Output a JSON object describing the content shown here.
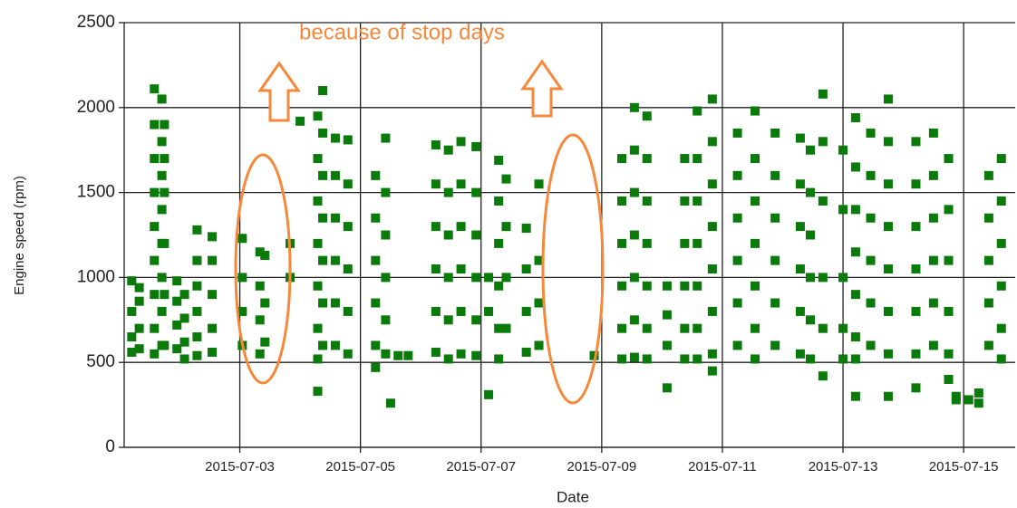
{
  "chart_data": {
    "type": "scatter",
    "x_label": "Date",
    "y_label": "Engine speed (rpm)",
    "annotation": "because of stop days",
    "color": "#0a7a0a",
    "grid": true,
    "annotation_color": "#f5883a",
    "xlim": [
      "2015-07-01T02:00",
      "2015-07-15T20:30"
    ],
    "xticks": [
      "2015-07-03",
      "2015-07-05",
      "2015-07-07",
      "2015-07-09",
      "2015-07-11",
      "2015-07-13",
      "2015-07-15"
    ],
    "ylim": [
      0,
      2500
    ],
    "yticks": [
      0,
      500,
      1000,
      1500,
      2000,
      2500
    ],
    "x": [
      "2015-07-01T05:00",
      "2015-07-01T05:00",
      "2015-07-01T05:00",
      "2015-07-01T05:00",
      "2015-07-01T08:00",
      "2015-07-01T08:00",
      "2015-07-01T08:00",
      "2015-07-01T08:00",
      "2015-07-01T14:00",
      "2015-07-01T14:00",
      "2015-07-01T14:00",
      "2015-07-01T14:00",
      "2015-07-01T14:00",
      "2015-07-01T14:00",
      "2015-07-01T14:00",
      "2015-07-01T14:00",
      "2015-07-01T14:00",
      "2015-07-01T17:00",
      "2015-07-01T17:00",
      "2015-07-01T17:00",
      "2015-07-01T17:00",
      "2015-07-01T17:00",
      "2015-07-01T17:00",
      "2015-07-01T17:00",
      "2015-07-01T17:00",
      "2015-07-01T18:00",
      "2015-07-01T18:00",
      "2015-07-01T18:00",
      "2015-07-01T18:00",
      "2015-07-01T18:00",
      "2015-07-01T18:00",
      "2015-07-01T23:00",
      "2015-07-01T23:00",
      "2015-07-01T23:00",
      "2015-07-01T23:00",
      "2015-07-02T02:00",
      "2015-07-02T02:00",
      "2015-07-02T02:00",
      "2015-07-02T02:00",
      "2015-07-02T07:00",
      "2015-07-02T07:00",
      "2015-07-02T07:00",
      "2015-07-02T07:00",
      "2015-07-02T07:00",
      "2015-07-02T07:00",
      "2015-07-02T13:00",
      "2015-07-02T13:00",
      "2015-07-02T13:00",
      "2015-07-02T13:00",
      "2015-07-02T13:00",
      "2015-07-03T01:00",
      "2015-07-03T01:00",
      "2015-07-03T01:00",
      "2015-07-03T01:00",
      "2015-07-03T08:00",
      "2015-07-03T08:00",
      "2015-07-03T08:00",
      "2015-07-03T08:00",
      "2015-07-03T10:00",
      "2015-07-03T10:00",
      "2015-07-03T10:00",
      "2015-07-03T20:00",
      "2015-07-03T20:00",
      "2015-07-04T00:00",
      "2015-07-04T07:00",
      "2015-07-04T07:00",
      "2015-07-04T07:00",
      "2015-07-04T07:00",
      "2015-07-04T07:00",
      "2015-07-04T07:00",
      "2015-07-04T07:00",
      "2015-07-04T07:00",
      "2015-07-04T09:00",
      "2015-07-04T09:00",
      "2015-07-04T09:00",
      "2015-07-04T09:00",
      "2015-07-04T09:00",
      "2015-07-04T09:00",
      "2015-07-04T09:00",
      "2015-07-04T14:00",
      "2015-07-04T14:00",
      "2015-07-04T14:00",
      "2015-07-04T14:00",
      "2015-07-04T14:00",
      "2015-07-04T14:00",
      "2015-07-04T19:00",
      "2015-07-04T19:00",
      "2015-07-04T19:00",
      "2015-07-04T19:00",
      "2015-07-04T19:00",
      "2015-07-04T19:00",
      "2015-07-05T06:00",
      "2015-07-05T06:00",
      "2015-07-05T06:00",
      "2015-07-05T06:00",
      "2015-07-05T06:00",
      "2015-07-05T06:00",
      "2015-07-05T10:00",
      "2015-07-05T10:00",
      "2015-07-05T10:00",
      "2015-07-05T10:00",
      "2015-07-05T10:00",
      "2015-07-05T10:00",
      "2015-07-05T12:00",
      "2015-07-05T15:00",
      "2015-07-05T19:00",
      "2015-07-06T06:00",
      "2015-07-06T06:00",
      "2015-07-06T06:00",
      "2015-07-06T06:00",
      "2015-07-06T06:00",
      "2015-07-06T06:00",
      "2015-07-06T11:00",
      "2015-07-06T11:00",
      "2015-07-06T11:00",
      "2015-07-06T11:00",
      "2015-07-06T11:00",
      "2015-07-06T11:00",
      "2015-07-06T16:00",
      "2015-07-06T16:00",
      "2015-07-06T16:00",
      "2015-07-06T16:00",
      "2015-07-06T16:00",
      "2015-07-06T16:00",
      "2015-07-06T22:00",
      "2015-07-06T22:00",
      "2015-07-06T22:00",
      "2015-07-06T22:00",
      "2015-07-06T22:00",
      "2015-07-06T22:00",
      "2015-07-07T03:00",
      "2015-07-07T03:00",
      "2015-07-07T03:00",
      "2015-07-07T07:00",
      "2015-07-07T07:00",
      "2015-07-07T07:00",
      "2015-07-07T07:00",
      "2015-07-07T07:00",
      "2015-07-07T07:00",
      "2015-07-07T10:00",
      "2015-07-07T10:00",
      "2015-07-07T10:00",
      "2015-07-07T10:00",
      "2015-07-07T18:00",
      "2015-07-07T18:00",
      "2015-07-07T18:00",
      "2015-07-07T18:00",
      "2015-07-07T23:00",
      "2015-07-07T23:00",
      "2015-07-07T23:00",
      "2015-07-07T23:00",
      "2015-07-08T21:00",
      "2015-07-09T08:00",
      "2015-07-09T08:00",
      "2015-07-09T08:00",
      "2015-07-09T08:00",
      "2015-07-09T08:00",
      "2015-07-09T08:00",
      "2015-07-09T13:00",
      "2015-07-09T13:00",
      "2015-07-09T13:00",
      "2015-07-09T13:00",
      "2015-07-09T13:00",
      "2015-07-09T13:00",
      "2015-07-09T13:00",
      "2015-07-09T18:00",
      "2015-07-09T18:00",
      "2015-07-09T18:00",
      "2015-07-09T18:00",
      "2015-07-09T18:00",
      "2015-07-09T18:00",
      "2015-07-09T18:00",
      "2015-07-10T02:00",
      "2015-07-10T02:00",
      "2015-07-10T02:00",
      "2015-07-10T02:00",
      "2015-07-10T09:00",
      "2015-07-10T09:00",
      "2015-07-10T09:00",
      "2015-07-10T09:00",
      "2015-07-10T09:00",
      "2015-07-10T09:00",
      "2015-07-10T14:00",
      "2015-07-10T14:00",
      "2015-07-10T14:00",
      "2015-07-10T14:00",
      "2015-07-10T14:00",
      "2015-07-10T14:00",
      "2015-07-10T14:00",
      "2015-07-10T20:00",
      "2015-07-10T20:00",
      "2015-07-10T20:00",
      "2015-07-10T20:00",
      "2015-07-10T20:00",
      "2015-07-10T20:00",
      "2015-07-10T20:00",
      "2015-07-10T20:00",
      "2015-07-11T06:00",
      "2015-07-11T06:00",
      "2015-07-11T06:00",
      "2015-07-11T06:00",
      "2015-07-11T06:00",
      "2015-07-11T06:00",
      "2015-07-11T13:00",
      "2015-07-11T13:00",
      "2015-07-11T13:00",
      "2015-07-11T13:00",
      "2015-07-11T13:00",
      "2015-07-11T13:00",
      "2015-07-11T13:00",
      "2015-07-11T21:00",
      "2015-07-11T21:00",
      "2015-07-11T21:00",
      "2015-07-11T21:00",
      "2015-07-11T21:00",
      "2015-07-11T21:00",
      "2015-07-12T07:00",
      "2015-07-12T07:00",
      "2015-07-12T07:00",
      "2015-07-12T07:00",
      "2015-07-12T07:00",
      "2015-07-12T07:00",
      "2015-07-12T11:00",
      "2015-07-12T11:00",
      "2015-07-12T11:00",
      "2015-07-12T11:00",
      "2015-07-12T11:00",
      "2015-07-12T11:00",
      "2015-07-12T16:00",
      "2015-07-12T16:00",
      "2015-07-12T16:00",
      "2015-07-12T16:00",
      "2015-07-12T16:00",
      "2015-07-12T16:00",
      "2015-07-13T00:00",
      "2015-07-13T00:00",
      "2015-07-13T00:00",
      "2015-07-13T00:00",
      "2015-07-13T00:00",
      "2015-07-13T05:00",
      "2015-07-13T05:00",
      "2015-07-13T05:00",
      "2015-07-13T05:00",
      "2015-07-13T05:00",
      "2015-07-13T05:00",
      "2015-07-13T05:00",
      "2015-07-13T05:00",
      "2015-07-13T11:00",
      "2015-07-13T11:00",
      "2015-07-13T11:00",
      "2015-07-13T11:00",
      "2015-07-13T11:00",
      "2015-07-13T11:00",
      "2015-07-13T18:00",
      "2015-07-13T18:00",
      "2015-07-13T18:00",
      "2015-07-13T18:00",
      "2015-07-13T18:00",
      "2015-07-13T18:00",
      "2015-07-13T18:00",
      "2015-07-13T18:00",
      "2015-07-14T05:00",
      "2015-07-14T05:00",
      "2015-07-14T05:00",
      "2015-07-14T05:00",
      "2015-07-14T05:00",
      "2015-07-14T05:00",
      "2015-07-14T05:00",
      "2015-07-14T12:00",
      "2015-07-14T12:00",
      "2015-07-14T12:00",
      "2015-07-14T12:00",
      "2015-07-14T12:00",
      "2015-07-14T12:00",
      "2015-07-14T18:00",
      "2015-07-14T18:00",
      "2015-07-14T18:00",
      "2015-07-14T18:00",
      "2015-07-14T18:00",
      "2015-07-14T18:00",
      "2015-07-14T21:00",
      "2015-07-14T21:00",
      "2015-07-15T02:00",
      "2015-07-15T06:00",
      "2015-07-15T06:00",
      "2015-07-15T10:00",
      "2015-07-15T10:00",
      "2015-07-15T10:00",
      "2015-07-15T10:00",
      "2015-07-15T10:00",
      "2015-07-15T15:00",
      "2015-07-15T15:00",
      "2015-07-15T15:00",
      "2015-07-15T15:00",
      "2015-07-15T15:00",
      "2015-07-15T15:00"
    ],
    "values": [
      980,
      800,
      650,
      560,
      940,
      860,
      700,
      580,
      2110,
      1900,
      1700,
      1500,
      1300,
      1100,
      900,
      700,
      550,
      2050,
      1800,
      1600,
      1400,
      1200,
      1000,
      800,
      600,
      1900,
      1700,
      1500,
      1200,
      900,
      600,
      980,
      860,
      720,
      580,
      900,
      760,
      620,
      520,
      1280,
      1100,
      950,
      800,
      650,
      540,
      1240,
      1100,
      900,
      700,
      560,
      1230,
      1000,
      800,
      600,
      1150,
      950,
      750,
      550,
      1130,
      850,
      620,
      1200,
      1000,
      1920,
      1950,
      1700,
      1450,
      1200,
      950,
      700,
      520,
      330,
      2100,
      1850,
      1600,
      1350,
      1100,
      850,
      600,
      1820,
      1600,
      1350,
      1100,
      850,
      600,
      1810,
      1550,
      1300,
      1050,
      800,
      550,
      1600,
      1350,
      1100,
      850,
      600,
      470,
      1820,
      1500,
      1250,
      1000,
      750,
      550,
      260,
      540,
      540,
      1780,
      1550,
      1300,
      1050,
      800,
      560,
      1750,
      1500,
      1250,
      1000,
      750,
      520,
      1800,
      1550,
      1300,
      1050,
      800,
      550,
      1770,
      1500,
      1250,
      1000,
      750,
      540,
      1000,
      800,
      310,
      1690,
      1450,
      1200,
      950,
      700,
      520,
      1580,
      1300,
      1000,
      700,
      1290,
      1050,
      800,
      560,
      1550,
      1100,
      850,
      600,
      540,
      1700,
      1450,
      1200,
      950,
      700,
      520,
      2000,
      1750,
      1500,
      1250,
      1000,
      750,
      530,
      1950,
      1700,
      1450,
      1200,
      950,
      700,
      520,
      950,
      780,
      600,
      350,
      1700,
      1450,
      1200,
      950,
      700,
      520,
      1980,
      1700,
      1450,
      1200,
      950,
      700,
      520,
      2050,
      1800,
      1550,
      1300,
      1050,
      800,
      550,
      450,
      1850,
      1600,
      1350,
      1100,
      850,
      600,
      1980,
      1700,
      1450,
      1200,
      950,
      700,
      520,
      1850,
      1600,
      1350,
      1100,
      850,
      600,
      1820,
      1550,
      1300,
      1050,
      800,
      550,
      1750,
      1500,
      1250,
      1000,
      750,
      520,
      2080,
      1800,
      1450,
      1000,
      700,
      420,
      1750,
      1400,
      1000,
      700,
      520,
      1940,
      1650,
      1400,
      1150,
      900,
      650,
      520,
      300,
      1850,
      1600,
      1350,
      1100,
      850,
      600,
      2050,
      1800,
      1550,
      1300,
      1050,
      800,
      550,
      300,
      1800,
      1550,
      1300,
      1050,
      800,
      550,
      350,
      1850,
      1600,
      1350,
      1100,
      850,
      600,
      1700,
      1400,
      1100,
      800,
      550,
      400,
      300,
      280,
      280,
      260,
      320,
      1600,
      1350,
      1100,
      850,
      600,
      1700,
      1450,
      1200,
      950,
      700,
      520
    ]
  }
}
